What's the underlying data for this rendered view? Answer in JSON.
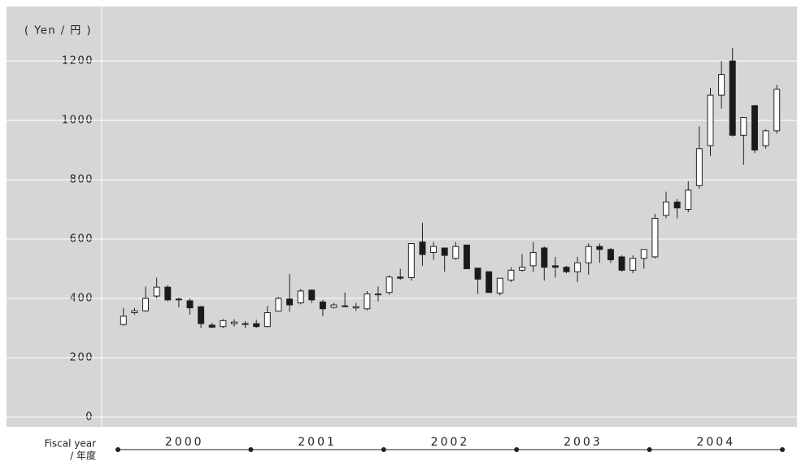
{
  "chart_data": {
    "type": "candlestick",
    "y_label": "( Yen / 円 )",
    "x_label": [
      "Fiscal year",
      "/ 年度"
    ],
    "years": [
      "2000",
      "2001",
      "2002",
      "2003",
      "2004"
    ],
    "ylim": [
      -33,
      1384
    ],
    "yticks": [
      0,
      200,
      400,
      600,
      800,
      1000,
      1200
    ],
    "grid": true,
    "up_color": "#ffffff",
    "down_color": "#1a1a1a",
    "open": [
      312,
      352,
      358,
      408,
      438,
      398,
      392,
      372,
      310,
      305,
      315,
      313,
      315,
      305,
      357,
      398,
      385,
      428,
      388,
      370,
      375,
      368,
      365,
      412,
      420,
      472,
      470,
      590,
      555,
      570,
      535,
      580,
      502,
      490,
      418,
      462,
      495,
      510,
      570,
      510,
      505,
      490,
      520,
      575,
      565,
      540,
      495,
      535,
      540,
      680,
      725,
      700,
      780,
      915,
      1085,
      1200,
      950,
      1050,
      915,
      965
    ],
    "high": [
      368,
      368,
      440,
      470,
      445,
      402,
      400,
      375,
      318,
      330,
      330,
      323,
      328,
      375,
      405,
      482,
      432,
      430,
      395,
      385,
      420,
      385,
      425,
      440,
      478,
      500,
      585,
      655,
      590,
      570,
      590,
      580,
      502,
      490,
      468,
      505,
      550,
      590,
      575,
      540,
      510,
      540,
      585,
      585,
      570,
      545,
      545,
      565,
      685,
      760,
      735,
      795,
      980,
      1110,
      1200,
      1245,
      1010,
      1050,
      970,
      1120
    ],
    "low": [
      308,
      345,
      355,
      400,
      390,
      370,
      345,
      300,
      300,
      300,
      305,
      300,
      300,
      303,
      355,
      355,
      380,
      385,
      340,
      365,
      370,
      358,
      360,
      390,
      412,
      462,
      460,
      510,
      530,
      490,
      530,
      500,
      415,
      420,
      410,
      455,
      490,
      490,
      460,
      470,
      485,
      455,
      480,
      520,
      520,
      490,
      485,
      500,
      535,
      670,
      670,
      690,
      770,
      880,
      1040,
      945,
      850,
      890,
      905,
      955
    ],
    "close": [
      340,
      358,
      400,
      438,
      395,
      395,
      368,
      315,
      303,
      325,
      320,
      315,
      305,
      352,
      400,
      378,
      425,
      395,
      365,
      378,
      373,
      372,
      415,
      415,
      472,
      468,
      585,
      548,
      575,
      545,
      575,
      500,
      465,
      420,
      468,
      495,
      505,
      555,
      505,
      505,
      490,
      520,
      575,
      565,
      530,
      495,
      535,
      565,
      670,
      725,
      705,
      765,
      905,
      1085,
      1155,
      950,
      1010,
      900,
      965,
      1105
    ]
  }
}
